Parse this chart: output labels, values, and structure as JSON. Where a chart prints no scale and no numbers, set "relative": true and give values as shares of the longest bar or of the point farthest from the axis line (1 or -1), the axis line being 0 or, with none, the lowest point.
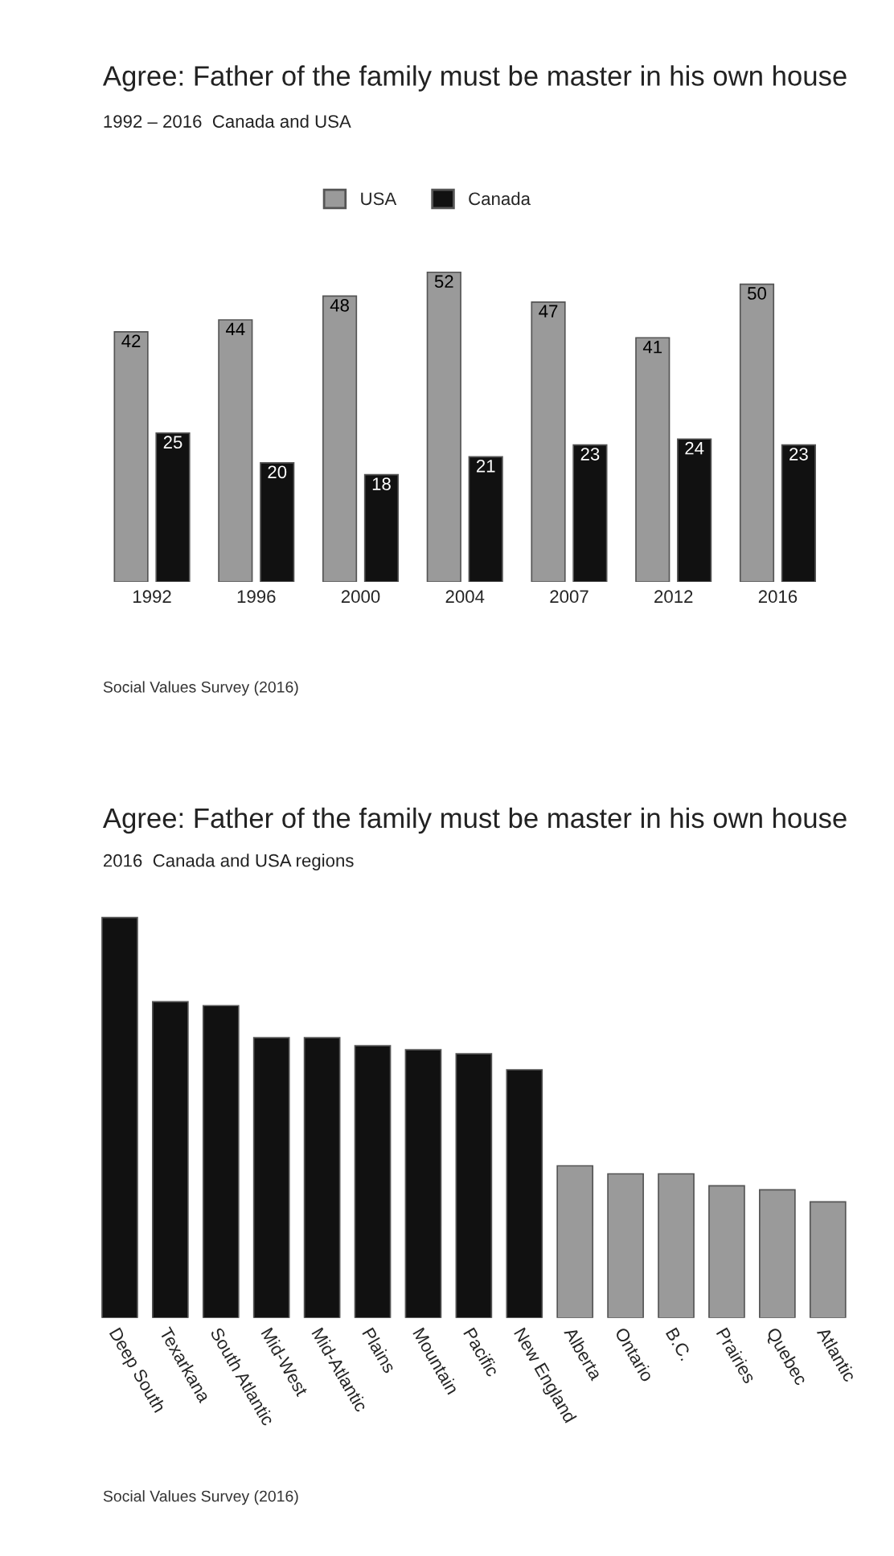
{
  "chart_data": [
    {
      "type": "bar",
      "title": "Agree: Father of the family must be master in his own house",
      "subtitle": "1992 – 2016  Canada and USA",
      "categories": [
        "1992",
        "1996",
        "2000",
        "2004",
        "2007",
        "2012",
        "2016"
      ],
      "series": [
        {
          "name": "USA",
          "color": "#9a9a9a",
          "values": [
            42,
            44,
            48,
            52,
            47,
            41,
            50
          ]
        },
        {
          "name": "Canada",
          "color": "#111111",
          "values": [
            25,
            20,
            18,
            21,
            23,
            24,
            23
          ]
        }
      ],
      "data_labels": true,
      "legend": "top",
      "tick_labels": "x",
      "grid": false,
      "annotations": [
        "Social Values Survey (2016)"
      ]
    },
    {
      "type": "bar",
      "title": "Agree: Father of the family must be master in his own house",
      "subtitle": "2016  Canada and USA regions",
      "categories": [
        "Deep South",
        "Texarkana",
        "South Atlantic",
        "Mid-West",
        "Mid-Atlantic",
        "Plains",
        "Mountain",
        "Pacific",
        "New England",
        "Alberta",
        "Ontario",
        "B.C.",
        "Prairies",
        "Quebec",
        "Atlantic"
      ],
      "values": [
        1,
        0.79,
        0.78,
        0.7,
        0.7,
        0.68,
        0.67,
        0.66,
        0.62,
        0.38,
        0.36,
        0.36,
        0.33,
        0.32,
        0.29
      ],
      "colors": [
        "#111111",
        "#111111",
        "#111111",
        "#111111",
        "#111111",
        "#111111",
        "#111111",
        "#111111",
        "#111111",
        "#9a9a9a",
        "#9a9a9a",
        "#9a9a9a",
        "#9a9a9a",
        "#9a9a9a",
        "#9a9a9a"
      ],
      "relative": true,
      "grid": false,
      "annotations": [
        "Social Values Survey (2016)"
      ]
    }
  ]
}
